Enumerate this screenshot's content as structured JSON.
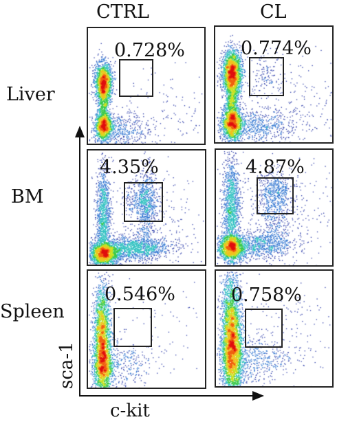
{
  "chart_data": {
    "type": "scatter",
    "title": "",
    "xlabel": "c-kit",
    "ylabel": "sca-1",
    "columns": [
      "CTRL",
      "CL"
    ],
    "rows": [
      "Liver",
      "BM",
      "Spleen"
    ],
    "panels": [
      {
        "row": "Liver",
        "column": "CTRL",
        "gate_percent": "0.728%"
      },
      {
        "row": "Liver",
        "column": "CL",
        "gate_percent": "0.774%"
      },
      {
        "row": "BM",
        "column": "CTRL",
        "gate_percent": "4.35%"
      },
      {
        "row": "BM",
        "column": "CL",
        "gate_percent": "4.87%"
      },
      {
        "row": "Spleen",
        "column": "CTRL",
        "gate_percent": "0.546%"
      },
      {
        "row": "Spleen",
        "column": "CL",
        "gate_percent": "0.758%"
      }
    ],
    "colormap": [
      "#2a3aa8",
      "#2f74d0",
      "#2fc0c0",
      "#38c848",
      "#c8e020",
      "#f0c020",
      "#f06010",
      "#e01010"
    ]
  }
}
